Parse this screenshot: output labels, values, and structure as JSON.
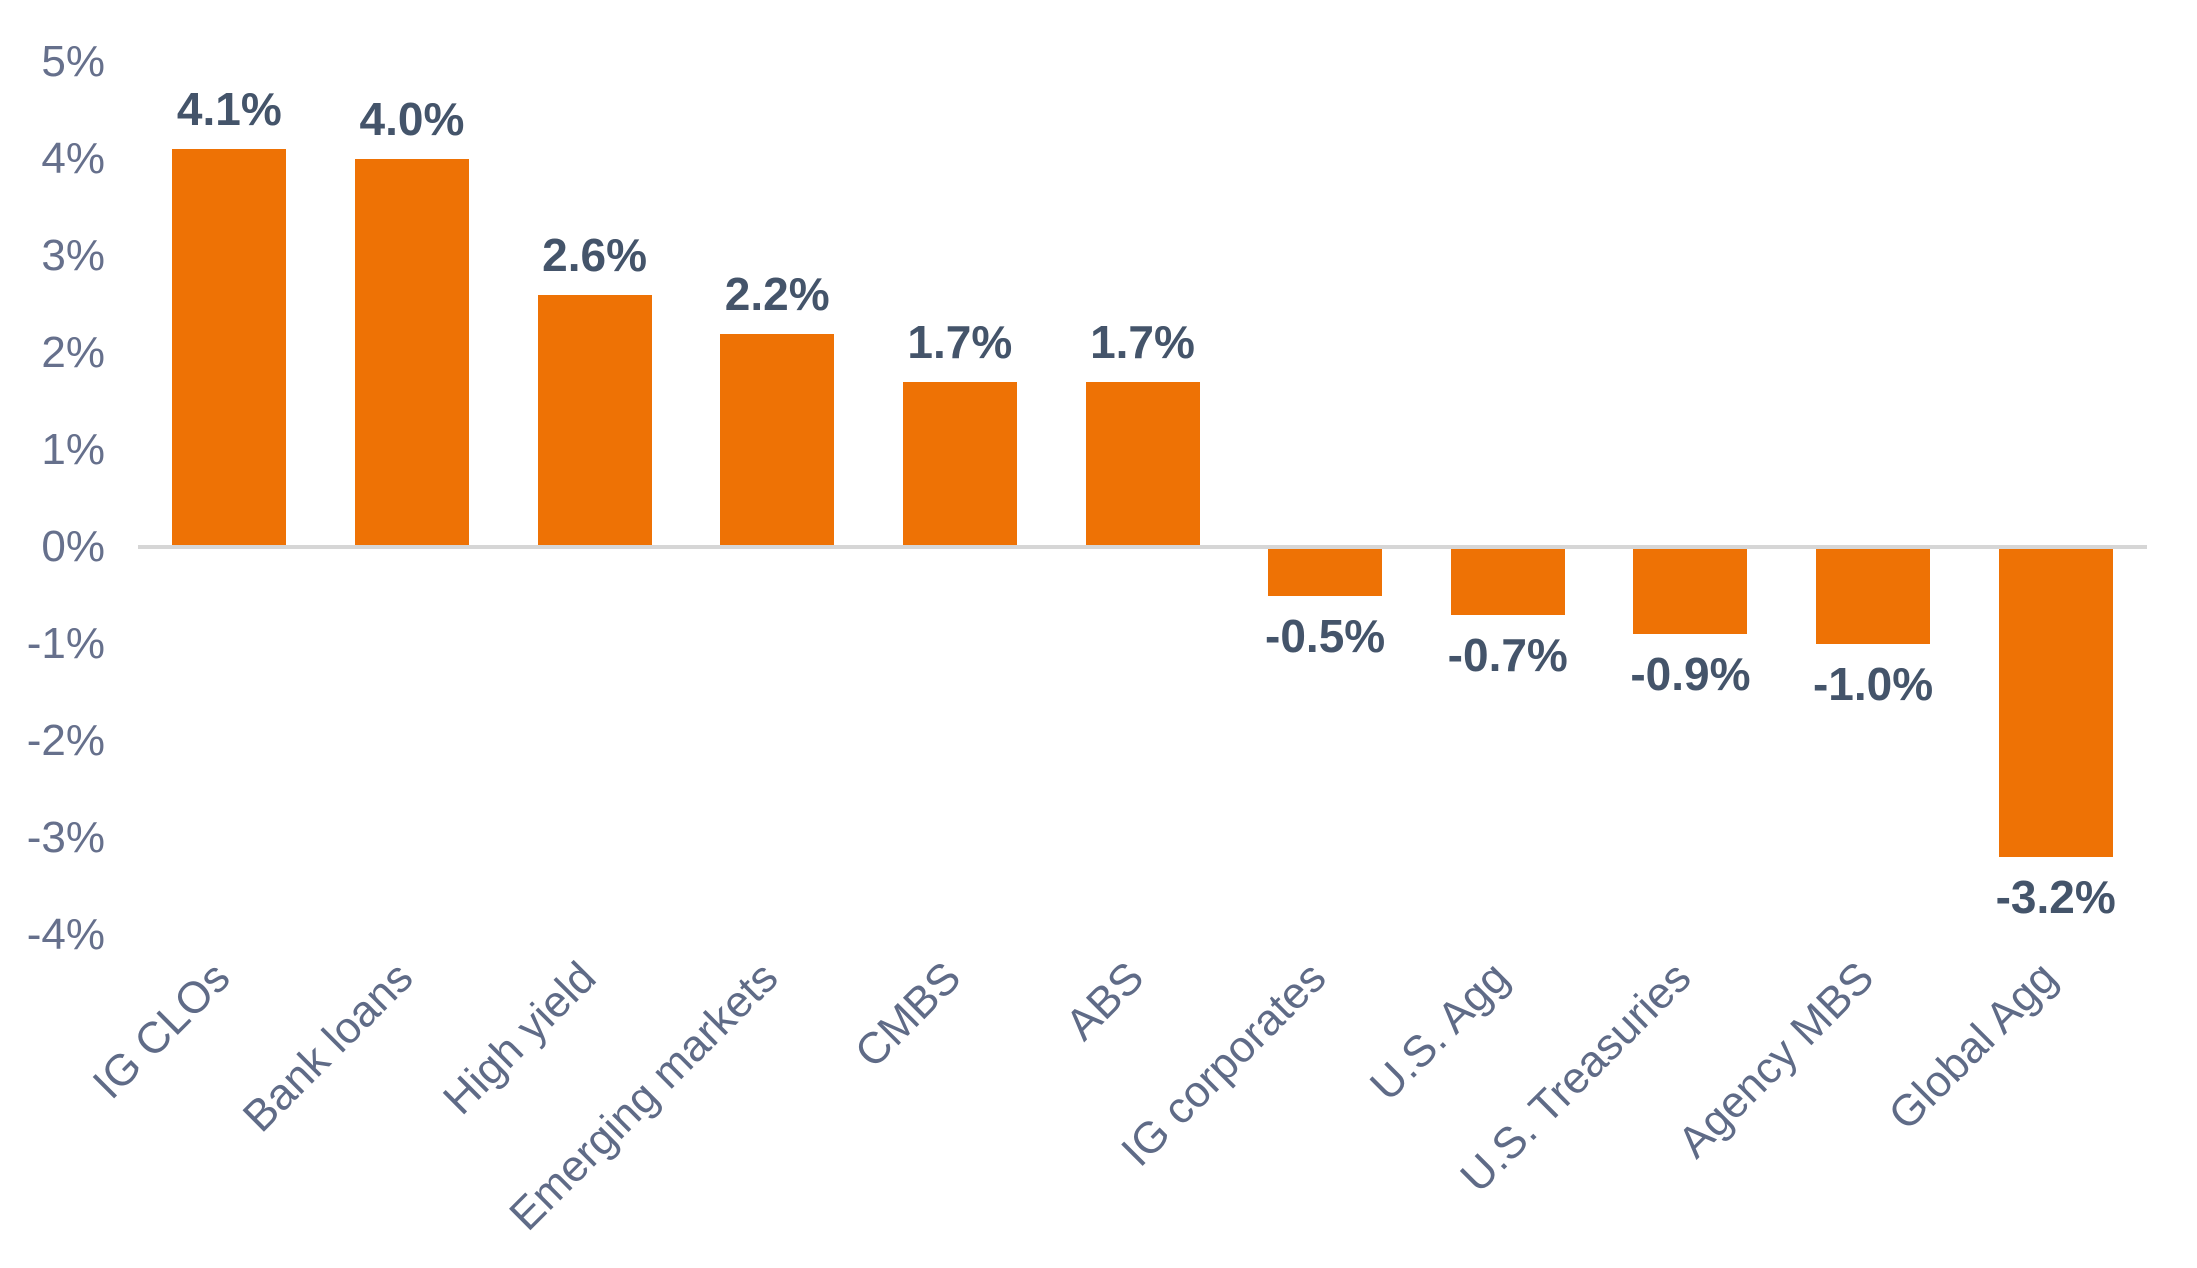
{
  "chart_data": {
    "type": "bar",
    "title": "",
    "xlabel": "",
    "ylabel": "",
    "categories": [
      "IG CLOs",
      "Bank loans",
      "High yield",
      "Emerging markets",
      "CMBS",
      "ABS",
      "IG corporates",
      "U.S. Agg",
      "U.S. Treasuries",
      "Agency MBS",
      "Global Agg"
    ],
    "values": [
      4.1,
      4.0,
      2.6,
      2.2,
      1.7,
      1.7,
      -0.5,
      -0.7,
      -0.9,
      -1.0,
      -3.2
    ],
    "data_labels": [
      "4.1%",
      "4.0%",
      "2.6%",
      "2.2%",
      "1.7%",
      "1.7%",
      "-0.5%",
      "-0.7%",
      "-0.9%",
      "-1.0%",
      "-3.2%"
    ],
    "ylim": [
      -4,
      5
    ],
    "yticks": [
      5,
      4,
      3,
      2,
      1,
      0,
      -1,
      -2,
      -3,
      -4
    ],
    "ytick_labels": [
      "5%",
      "4%",
      "3%",
      "2%",
      "1%",
      "0%",
      "-1%",
      "-2%",
      "-3%",
      "-4%"
    ],
    "grid": false,
    "legend": null,
    "bar_color": "#EE7205",
    "data_label_color": "#44546A",
    "tick_label_color": "#66708C",
    "category_label_color": "#5F6B87",
    "baseline_color": "#D6D6D6",
    "background_color": "#FFFFFF"
  }
}
